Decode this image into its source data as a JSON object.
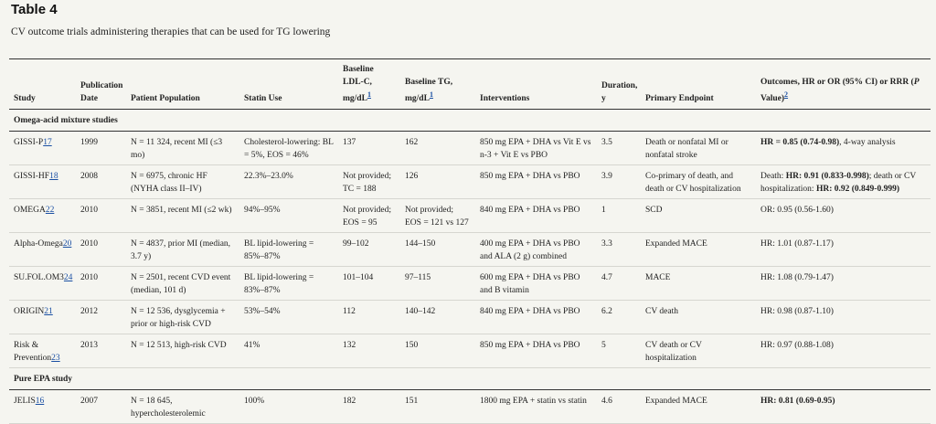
{
  "title": "Table 4",
  "caption": "CV outcome trials administering therapies that can be used for TG lowering",
  "headers": {
    "study": "Study",
    "pub1": "Publication",
    "pub2": "Date",
    "population": "Patient Population",
    "statin": "Statin Use",
    "ldl1": "Baseline",
    "ldl2": "LDL-C,",
    "ldl3": "mg/dL",
    "ldl_sup": "1",
    "tg1": "Baseline TG,",
    "tg2": "mg/dL",
    "tg_sup": "1",
    "interventions": "Interventions",
    "dur1": "Duration,",
    "dur2": "y",
    "endpoint": "Primary Endpoint",
    "out1": "Outcomes, HR or OR (95% CI) or RRR (",
    "out_p": "P",
    "out2": "Value)",
    "out_sup": "2"
  },
  "sections": {
    "omega": "Omega-acid mixture studies",
    "epa": "Pure EPA study"
  },
  "rows": [
    {
      "study": "GISSI-P",
      "ref": "17",
      "date": "1999",
      "population": "N = 11 324, recent MI (≤3 mo)",
      "statin": "Cholesterol-lowering: BL = 5%, EOS = 46%",
      "ldl": "137",
      "tg": "162",
      "interventions": "850 mg EPA + DHA vs Vit E vs n-3 + Vit E vs PBO",
      "duration": "3.5",
      "endpoint": "Death or nonfatal MI or nonfatal stroke",
      "out_bold": "HR = 0.85 (0.74-0.98)",
      "out_rest": ", 4-way analysis"
    },
    {
      "study": "GISSI-HF",
      "ref": "18",
      "date": "2008",
      "population": "N = 6975, chronic HF (NYHA class II–IV)",
      "statin": "22.3%–23.0%",
      "ldl": "Not provided; TC = 188",
      "tg": "126",
      "interventions": "850 mg EPA + DHA vs PBO",
      "duration": "3.9",
      "endpoint": "Co-primary of death, and death or CV hospitalization",
      "out_a": "Death: ",
      "out_b": "HR: 0.91 (0.833-0.998)",
      "out_c": "; death or CV hospitalization: ",
      "out_d": "HR: 0.92 (0.849-0.999)"
    },
    {
      "study": "OMEGA",
      "ref": "22",
      "date": "2010",
      "population": "N = 3851, recent MI (≤2 wk)",
      "statin": "94%–95%",
      "ldl": "Not provided; EOS = 95",
      "tg": "Not provided; EOS = 121 vs 127",
      "interventions": "840 mg EPA + DHA vs PBO",
      "duration": "1",
      "endpoint": "SCD",
      "outcome": "OR: 0.95 (0.56-1.60)"
    },
    {
      "study": "Alpha-Omega",
      "ref": "20",
      "date": "2010",
      "population": "N = 4837, prior MI (median, 3.7 y)",
      "statin": "BL lipid-lowering = 85%–87%",
      "ldl": "99–102",
      "tg": "144–150",
      "interventions": "400 mg EPA + DHA vs PBO and ALA (2 g) combined",
      "duration": "3.3",
      "endpoint": "Expanded MACE",
      "outcome": "HR: 1.01 (0.87-1.17)"
    },
    {
      "study": "SU.FOL.OM3",
      "ref": "24",
      "date": "2010",
      "population": "N = 2501, recent CVD event (median, 101 d)",
      "statin": "BL lipid-lowering = 83%–87%",
      "ldl": "101–104",
      "tg": "97–115",
      "interventions": "600 mg EPA + DHA vs PBO and B vitamin",
      "duration": "4.7",
      "endpoint": "MACE",
      "outcome": "HR: 1.08 (0.79-1.47)"
    },
    {
      "study": "ORIGIN",
      "ref": "21",
      "date": "2012",
      "population": "N = 12 536, dysglycemia + prior or high-risk CVD",
      "statin": "53%–54%",
      "ldl": "112",
      "tg": "140–142",
      "interventions": "840 mg EPA + DHA vs PBO",
      "duration": "6.2",
      "endpoint": "CV death",
      "outcome": "HR: 0.98 (0.87-1.10)"
    },
    {
      "study": "Risk & Prevention",
      "ref": "23",
      "date": "2013",
      "population": "N = 12 513, high-risk CVD",
      "statin": "41%",
      "ldl": "132",
      "tg": "150",
      "interventions": "850 mg EPA + DHA vs PBO",
      "duration": "5",
      "endpoint": "CV death or CV hospitalization",
      "outcome": "HR: 0.97 (0.88-1.08)"
    },
    {
      "study": "JELIS",
      "ref": "16",
      "date": "2007",
      "population": "N = 18 645, hypercholesterolemic",
      "statin": "100%",
      "ldl": "182",
      "tg": "151",
      "interventions": "1800 mg EPA + statin vs statin",
      "duration": "4.6",
      "endpoint": "Expanded MACE",
      "out_bold": "HR: 0.81 (0.69-0.95)"
    }
  ]
}
